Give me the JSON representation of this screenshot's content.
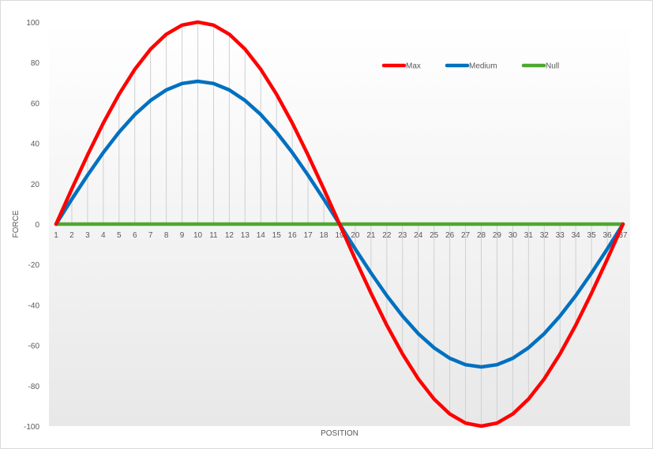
{
  "chart_data": {
    "type": "line",
    "title": "",
    "xlabel": "POSITION",
    "ylabel": "FORCE",
    "ylim": [
      -100,
      100
    ],
    "yticks": [
      100,
      80,
      60,
      40,
      20,
      0,
      -20,
      -40,
      -60,
      -80,
      -100
    ],
    "categories": [
      "1",
      "2",
      "3",
      "4",
      "5",
      "6",
      "7",
      "8",
      "9",
      "10",
      "11",
      "12",
      "13",
      "14",
      "15",
      "16",
      "17",
      "18",
      "19",
      "20",
      "21",
      "22",
      "23",
      "24",
      "25",
      "26",
      "27",
      "28",
      "29",
      "30",
      "31",
      "32",
      "33",
      "34",
      "35",
      "36",
      "37"
    ],
    "grid": "vertical drop lines at each position",
    "legend_position": "top-right",
    "series": [
      {
        "name": "Max",
        "color": "#ff0000",
        "values": [
          0,
          17.4,
          34.2,
          50,
          64.3,
          76.6,
          86.6,
          94,
          98.5,
          100,
          98.5,
          94,
          86.6,
          76.6,
          64.3,
          50,
          34.2,
          17.4,
          0,
          -17.4,
          -34.2,
          -50,
          -64.3,
          -76.6,
          -86.6,
          -94,
          -98.5,
          -100,
          -98.5,
          -94,
          -86.6,
          -76.6,
          -64.3,
          -50,
          -34.2,
          -17.4,
          0
        ]
      },
      {
        "name": "Medium",
        "color": "#0070c0",
        "values": [
          0,
          12.3,
          24.2,
          35.4,
          45.5,
          54.2,
          61.2,
          66.4,
          69.6,
          70.7,
          69.6,
          66.4,
          61.2,
          54.2,
          45.5,
          35.4,
          24.2,
          12.3,
          0,
          -12.3,
          -24.2,
          -35.4,
          -45.5,
          -54.2,
          -61.2,
          -66.4,
          -69.6,
          -70.7,
          -69.6,
          -66.4,
          -61.2,
          -54.2,
          -45.5,
          -35.4,
          -24.2,
          -12.3,
          0
        ]
      },
      {
        "name": "Null",
        "color": "#4ea72e",
        "values": [
          0,
          0,
          0,
          0,
          0,
          0,
          0,
          0,
          0,
          0,
          0,
          0,
          0,
          0,
          0,
          0,
          0,
          0,
          0,
          0,
          0,
          0,
          0,
          0,
          0,
          0,
          0,
          0,
          0,
          0,
          0,
          0,
          0,
          0,
          0,
          0,
          0
        ]
      }
    ]
  }
}
